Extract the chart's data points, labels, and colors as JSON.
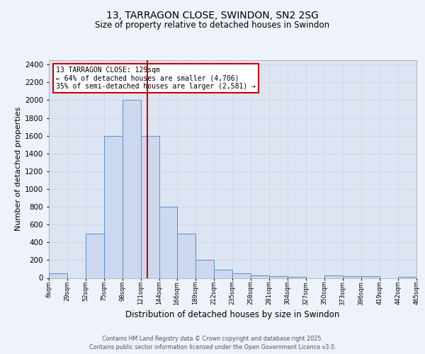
{
  "title1": "13, TARRAGON CLOSE, SWINDON, SN2 2SG",
  "title2": "Size of property relative to detached houses in Swindon",
  "xlabel": "Distribution of detached houses by size in Swindon",
  "ylabel": "Number of detached properties",
  "annotation_line1": "13 TARRAGON CLOSE: 129sqm",
  "annotation_line2": "← 64% of detached houses are smaller (4,706)",
  "annotation_line3": "35% of semi-detached houses are larger (2,581) →",
  "property_size": 129,
  "bin_edges": [
    6,
    29,
    52,
    75,
    98,
    121,
    144,
    166,
    189,
    212,
    235,
    258,
    281,
    304,
    327,
    350,
    373,
    396,
    419,
    442,
    465
  ],
  "bar_heights": [
    50,
    0,
    500,
    1600,
    2000,
    1600,
    800,
    500,
    200,
    90,
    50,
    30,
    20,
    10,
    0,
    30,
    20,
    20,
    0,
    15
  ],
  "bar_facecolor": "#ccd8ef",
  "bar_edgecolor": "#5b8ec7",
  "vline_color": "#cc0000",
  "annotation_box_edgecolor": "#cc0000",
  "annotation_box_facecolor": "#ffffff",
  "grid_color": "#ccd5e8",
  "plot_bg_color": "#dde5f3",
  "fig_bg_color": "#eef2fa",
  "footer_line1": "Contains HM Land Registry data © Crown copyright and database right 2025.",
  "footer_line2": "Contains public sector information licensed under the Open Government Licence v3.0.",
  "ylim": [
    0,
    2450
  ],
  "yticks": [
    0,
    200,
    400,
    600,
    800,
    1000,
    1200,
    1400,
    1600,
    1800,
    2000,
    2200,
    2400
  ],
  "xlim_left": 6,
  "xlim_right": 465
}
